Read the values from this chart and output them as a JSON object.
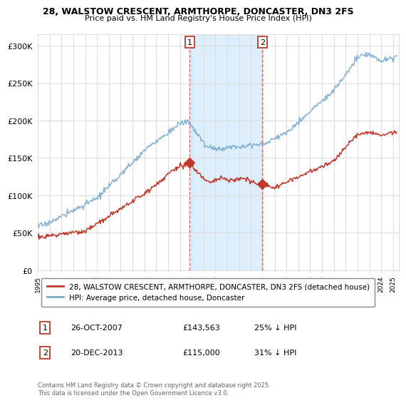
{
  "title1": "28, WALSTOW CRESCENT, ARMTHORPE, DONCASTER, DN3 2FS",
  "title2": "Price paid vs. HM Land Registry's House Price Index (HPI)",
  "ylabel_ticks": [
    "£0",
    "£50K",
    "£100K",
    "£150K",
    "£200K",
    "£250K",
    "£300K"
  ],
  "ytick_vals": [
    0,
    50000,
    100000,
    150000,
    200000,
    250000,
    300000
  ],
  "ylim": [
    0,
    315000
  ],
  "xlim_start": 1995.0,
  "xlim_end": 2025.5,
  "hpi_color": "#7aabcf",
  "price_color": "#c0392b",
  "shade_color": "#ddeeff",
  "marker1_x": 2007.82,
  "marker1_y_price": 143563,
  "marker2_x": 2013.97,
  "marker2_y_price": 115000,
  "legend_label_price": "28, WALSTOW CRESCENT, ARMTHORPE, DONCASTER, DN3 2FS (detached house)",
  "legend_label_hpi": "HPI: Average price, detached house, Doncaster",
  "annotation1_date": "26-OCT-2007",
  "annotation1_price": "£143,563",
  "annotation1_hpi": "25% ↓ HPI",
  "annotation2_date": "20-DEC-2013",
  "annotation2_price": "£115,000",
  "annotation2_hpi": "31% ↓ HPI",
  "footer": "Contains HM Land Registry data © Crown copyright and database right 2025.\nThis data is licensed under the Open Government Licence v3.0.",
  "background_color": "#ffffff",
  "plot_bg_color": "#ffffff",
  "grid_color": "#dddddd"
}
